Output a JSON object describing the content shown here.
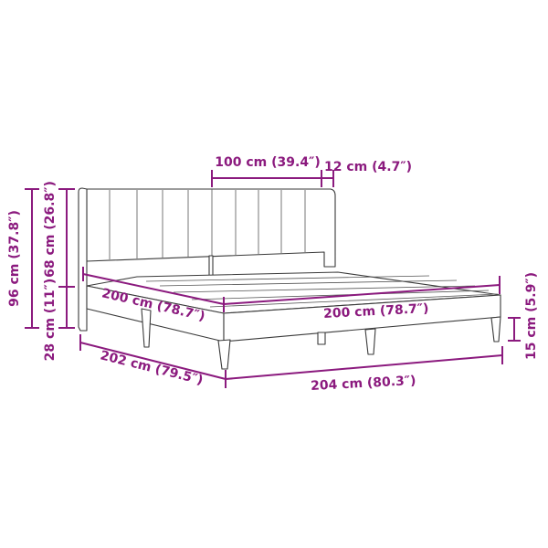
{
  "colors": {
    "dimension": "#8b1a7e",
    "outline": "#3a3a3a",
    "background": "#ffffff"
  },
  "dimensions": {
    "headboard_panel_width": "100 cm (39.4″)",
    "headboard_thickness": "12 cm (4.7″)",
    "total_height": "96 cm (37.8″)",
    "headboard_height": "68 cm (26.8″)",
    "frame_height": "28 cm (11″)",
    "mattress_length": "200 cm (78.7″)",
    "mattress_width": "200 cm (78.7″)",
    "total_length": "202 cm (79.5″)",
    "total_width": "204 cm (80.3″)",
    "leg_height": "15 cm (5.9″)"
  }
}
